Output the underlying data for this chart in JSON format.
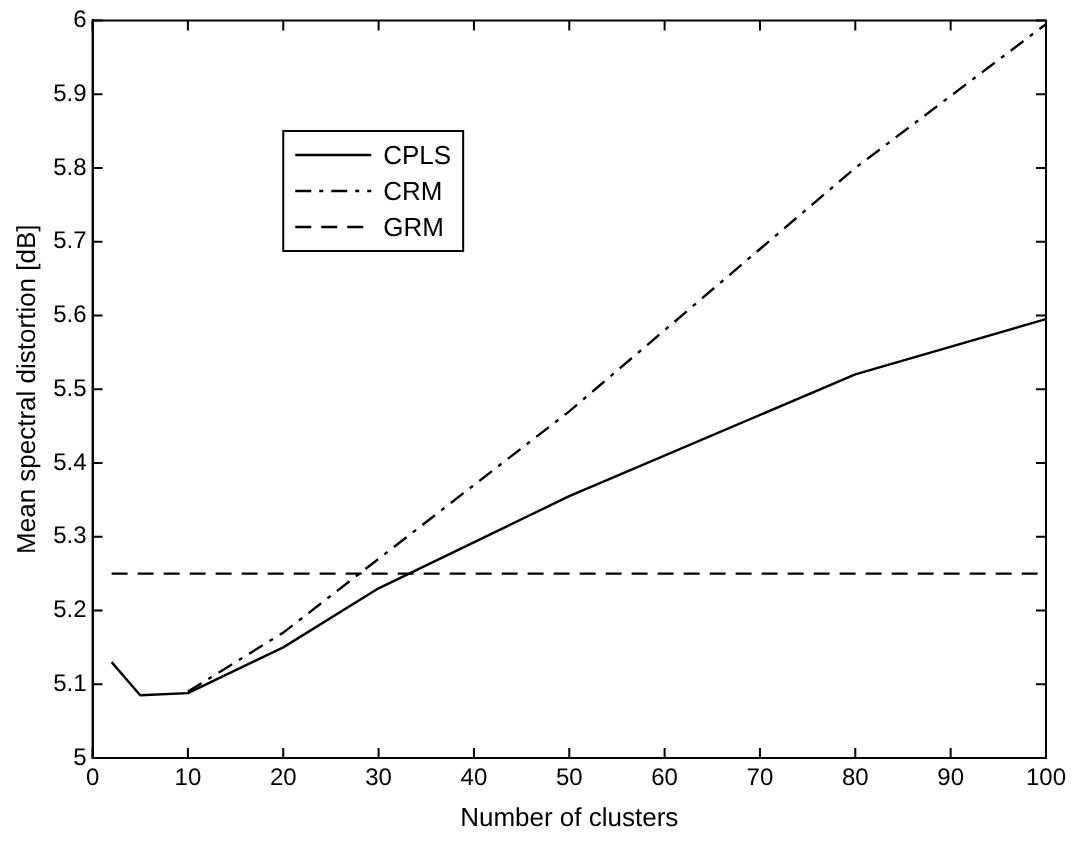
{
  "chart_data": {
    "type": "line",
    "xlabel": "Number of clusters",
    "ylabel": "Mean spectral distortion [dB]",
    "xlim": [
      0,
      100
    ],
    "xticks": [
      0,
      10,
      20,
      30,
      40,
      50,
      60,
      70,
      80,
      90,
      100
    ],
    "ylim": [
      5,
      6
    ],
    "yticks": [
      5,
      5.1,
      5.2,
      5.3,
      5.4,
      5.5,
      5.6,
      5.7,
      5.8,
      5.9,
      6
    ],
    "grid": false,
    "legend": "top left",
    "marker": "none",
    "series": [
      {
        "name": "CPLS",
        "color": "#000000",
        "line_style": "solid",
        "x": [
          2,
          5,
          10,
          20,
          30,
          50,
          80,
          100
        ],
        "values": [
          5.13,
          5.085,
          5.088,
          5.15,
          5.23,
          5.355,
          5.52,
          5.595
        ]
      },
      {
        "name": "CRM",
        "color": "#000000",
        "line_style": "dashdot",
        "x": [
          10,
          20,
          30,
          50,
          80,
          100
        ],
        "values": [
          5.09,
          5.17,
          5.27,
          5.47,
          5.8,
          5.995
        ]
      },
      {
        "name": "GRM",
        "color": "#000000",
        "line_style": "dashed",
        "x": [
          2,
          100
        ],
        "values": [
          5.25,
          5.25
        ]
      }
    ]
  }
}
